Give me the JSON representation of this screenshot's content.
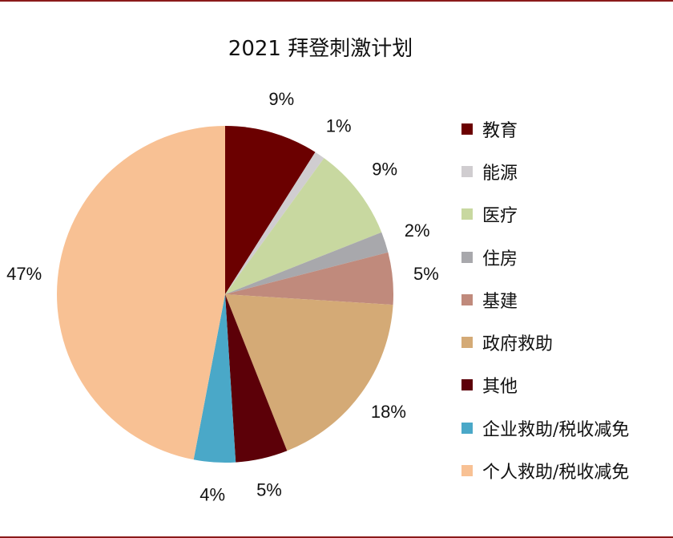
{
  "chart_data": {
    "type": "pie",
    "title": "2021 拜登刺激计划",
    "categories": [
      "教育",
      "能源",
      "医疗",
      "住房",
      "基建",
      "政府救助",
      "其他",
      "企业救助/税收减免",
      "个人救助/税收减免"
    ],
    "values": [
      9,
      1,
      9,
      2,
      5,
      18,
      5,
      4,
      47
    ],
    "labels": [
      "9%",
      "1%",
      "9%",
      "2%",
      "5%",
      "18%",
      "5%",
      "4%",
      "47%"
    ],
    "colors": [
      "#6b0000",
      "#d0cdd0",
      "#c8d8a0",
      "#a8a8ac",
      "#c08a7c",
      "#d4aa76",
      "#5c0008",
      "#4aa8c8",
      "#f8c194"
    ],
    "legend": "right"
  }
}
